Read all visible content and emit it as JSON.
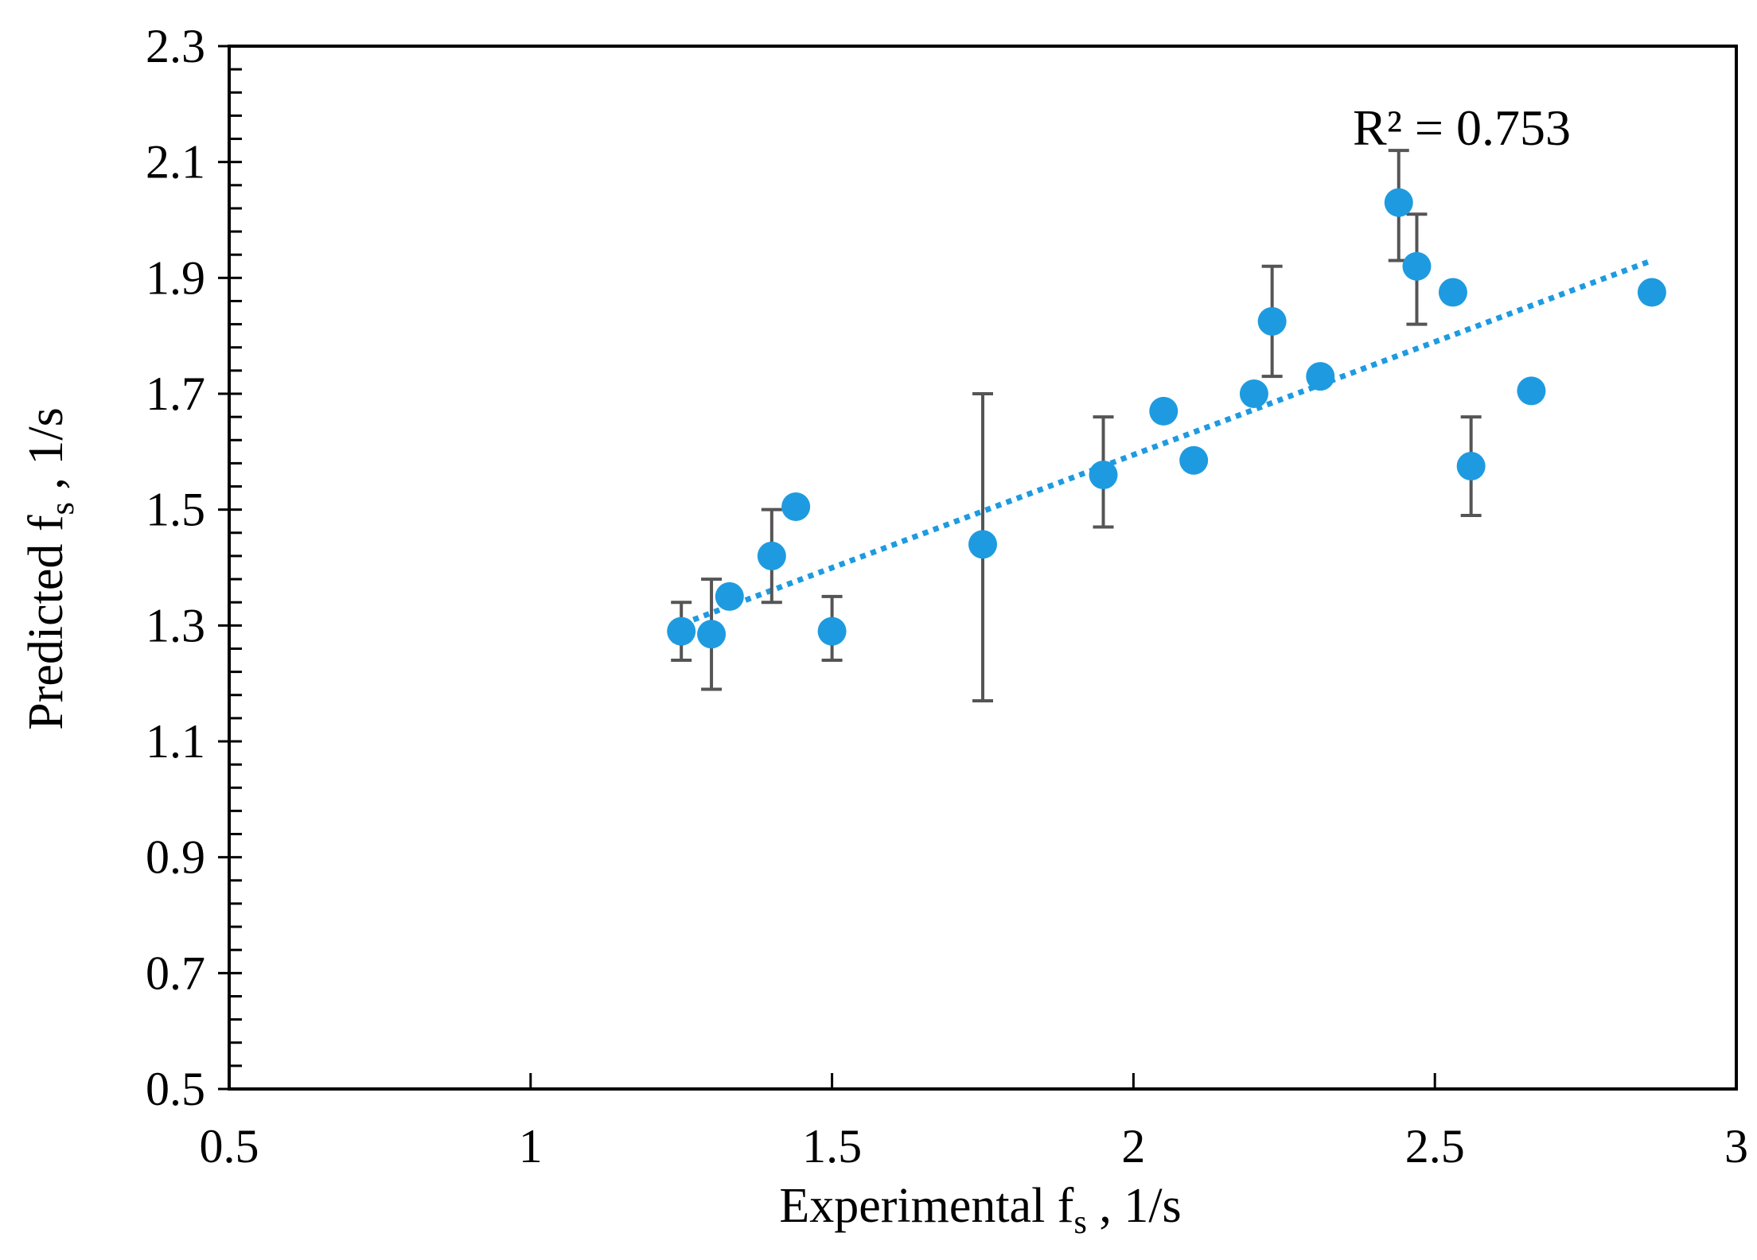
{
  "colors": {
    "point": "#1e9be0",
    "trendline": "#1e9be0",
    "errorbar": "#555555",
    "axis": "#000000"
  },
  "chart_data": {
    "type": "scatter",
    "xlabel_main": "Experimental f",
    "xlabel_sub": "s",
    "xlabel_tail": " , 1/s",
    "ylabel_main": "Predicted f",
    "ylabel_sub": "s",
    "ylabel_tail": " , 1/s",
    "xlim": [
      0.5,
      3
    ],
    "ylim": [
      0.5,
      2.3
    ],
    "xticks": [
      0.5,
      1,
      1.5,
      2,
      2.5,
      3
    ],
    "xtick_labels": [
      "0.5",
      "1",
      "1.5",
      "2",
      "2.5",
      "3"
    ],
    "yticks": [
      0.5,
      0.7,
      0.9,
      1.1,
      1.3,
      1.5,
      1.7,
      1.9,
      2.1,
      2.3
    ],
    "ytick_labels": [
      "0.5",
      "0.7",
      "0.9",
      "1.1",
      "1.3",
      "1.5",
      "1.7",
      "1.9",
      "2.1",
      "2.3"
    ],
    "y_minor_step": 0.04,
    "grid": false,
    "annotation": "R² = 0.753",
    "trendline": {
      "style": "dotted",
      "x": [
        1.27,
        2.86
      ],
      "y": [
        1.31,
        1.93
      ]
    },
    "points": [
      {
        "x": 1.25,
        "y": 1.29,
        "err_low": 1.24,
        "err_high": 1.34
      },
      {
        "x": 1.3,
        "y": 1.285,
        "err_low": 1.19,
        "err_high": 1.38
      },
      {
        "x": 1.33,
        "y": 1.35,
        "err_low": null,
        "err_high": null
      },
      {
        "x": 1.4,
        "y": 1.42,
        "err_low": 1.34,
        "err_high": 1.5
      },
      {
        "x": 1.44,
        "y": 1.505,
        "err_low": null,
        "err_high": null
      },
      {
        "x": 1.5,
        "y": 1.29,
        "err_low": 1.24,
        "err_high": 1.35
      },
      {
        "x": 1.75,
        "y": 1.44,
        "err_low": 1.17,
        "err_high": 1.7
      },
      {
        "x": 1.95,
        "y": 1.56,
        "err_low": 1.47,
        "err_high": 1.66
      },
      {
        "x": 2.05,
        "y": 1.67,
        "err_low": null,
        "err_high": null
      },
      {
        "x": 2.1,
        "y": 1.585,
        "err_low": null,
        "err_high": null
      },
      {
        "x": 2.2,
        "y": 1.7,
        "err_low": null,
        "err_high": null
      },
      {
        "x": 2.23,
        "y": 1.825,
        "err_low": 1.73,
        "err_high": 1.92
      },
      {
        "x": 2.31,
        "y": 1.73,
        "err_low": null,
        "err_high": null
      },
      {
        "x": 2.44,
        "y": 2.03,
        "err_low": 1.93,
        "err_high": 2.12
      },
      {
        "x": 2.47,
        "y": 1.92,
        "err_low": 1.82,
        "err_high": 2.01
      },
      {
        "x": 2.53,
        "y": 1.875,
        "err_low": null,
        "err_high": null
      },
      {
        "x": 2.56,
        "y": 1.575,
        "err_low": 1.49,
        "err_high": 1.66
      },
      {
        "x": 2.66,
        "y": 1.705,
        "err_low": null,
        "err_high": null
      },
      {
        "x": 2.86,
        "y": 1.875,
        "err_low": null,
        "err_high": null
      }
    ]
  }
}
